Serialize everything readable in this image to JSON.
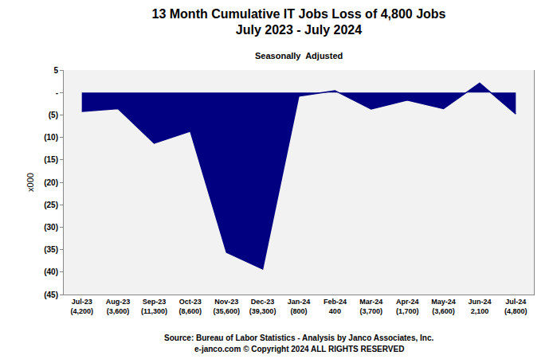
{
  "chart_data": {
    "type": "area",
    "title": "13 Month Cumulative IT Jobs Loss of 4,800 Jobs",
    "subtitle": "July 2023 - July 2024",
    "annotations": [
      "Seasonally  Adjusted",
      "Source: Bureau of Labor Statistics - Analysis by Janco Associates, Inc.",
      "e-janco.com © Copyright 2024 ALL RIGHTS RESERVED"
    ],
    "y_label": "x000",
    "categories": [
      "Jul-23",
      "Aug-23",
      "Sep-23",
      "Oct-23",
      "Nov-23",
      "Dec-23",
      "Jan-24",
      "Feb-24",
      "Mar-24",
      "Apr-24",
      "May-24",
      "Jun-24",
      "Jul-24"
    ],
    "values": [
      -4.2,
      -3.6,
      -11.3,
      -8.6,
      -35.6,
      -39.3,
      -0.8,
      0.4,
      -3.7,
      -1.7,
      -3.6,
      2.1,
      -4.8
    ],
    "value_labels": [
      "(4,200)",
      "(3,600)",
      "(11,300)",
      "(8,600)",
      "(35,600)",
      "(39,300)",
      "(800)",
      "400",
      "(3,700)",
      "(1,700)",
      "(3,600)",
      "2,100",
      "(4,800)"
    ],
    "data_labels": true,
    "color": "#000080",
    "ylim": [
      -45,
      5
    ],
    "yticks": [
      5,
      {
        "value": 0,
        "label": "-"
      },
      {
        "value": -5,
        "label": "(5)"
      },
      {
        "value": -10,
        "label": "(10)"
      },
      {
        "value": -15,
        "label": "(15)"
      },
      {
        "value": -20,
        "label": "(20)"
      },
      {
        "value": -25,
        "label": "(25)"
      },
      {
        "value": -30,
        "label": "(30)"
      },
      {
        "value": -35,
        "label": "(35)"
      },
      {
        "value": -40,
        "label": "(40)"
      },
      {
        "value": -45,
        "label": "(45)"
      }
    ],
    "grid": false
  }
}
